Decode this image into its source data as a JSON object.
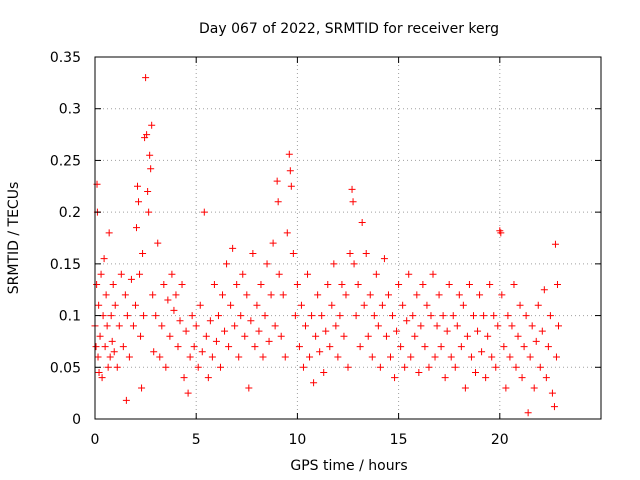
{
  "chart_data": {
    "type": "scatter",
    "title": "Day 067 of 2022, SRMTID for receiver kerg",
    "xlabel": "GPS time / hours",
    "ylabel": "SRMTID / TECUs",
    "xlim": [
      0,
      25
    ],
    "ylim": [
      0,
      0.35
    ],
    "x_ticks": [
      0,
      5,
      10,
      15,
      20
    ],
    "x_tick_labels": [
      "0",
      "5",
      "10",
      "15",
      "20"
    ],
    "y_ticks": [
      0,
      0.05,
      0.1,
      0.15,
      0.2,
      0.25,
      0.3,
      0.35
    ],
    "y_tick_labels": [
      "0",
      "0.05",
      "0.1",
      "0.15",
      "0.2",
      "0.25",
      "0.3",
      "0.35"
    ],
    "grid": true,
    "marker": "+",
    "color": "#ff0000",
    "series": [
      {
        "name": "SRMTID",
        "points": [
          [
            0.0,
            0.09
          ],
          [
            0.05,
            0.07
          ],
          [
            0.08,
            0.13
          ],
          [
            0.1,
            0.227
          ],
          [
            0.12,
            0.2
          ],
          [
            0.15,
            0.06
          ],
          [
            0.18,
            0.11
          ],
          [
            0.2,
            0.045
          ],
          [
            0.25,
            0.08
          ],
          [
            0.3,
            0.14
          ],
          [
            0.35,
            0.04
          ],
          [
            0.4,
            0.1
          ],
          [
            0.45,
            0.155
          ],
          [
            0.5,
            0.07
          ],
          [
            0.55,
            0.12
          ],
          [
            0.6,
            0.09
          ],
          [
            0.65,
            0.05
          ],
          [
            0.7,
            0.18
          ],
          [
            0.75,
            0.06
          ],
          [
            0.8,
            0.1
          ],
          [
            0.85,
            0.075
          ],
          [
            0.9,
            0.13
          ],
          [
            0.95,
            0.065
          ],
          [
            1.0,
            0.11
          ],
          [
            1.1,
            0.05
          ],
          [
            1.2,
            0.09
          ],
          [
            1.3,
            0.14
          ],
          [
            1.4,
            0.07
          ],
          [
            1.5,
            0.12
          ],
          [
            1.55,
            0.018
          ],
          [
            1.6,
            0.1
          ],
          [
            1.7,
            0.06
          ],
          [
            1.8,
            0.135
          ],
          [
            1.9,
            0.09
          ],
          [
            2.0,
            0.11
          ],
          [
            2.05,
            0.185
          ],
          [
            2.1,
            0.225
          ],
          [
            2.15,
            0.21
          ],
          [
            2.2,
            0.14
          ],
          [
            2.25,
            0.08
          ],
          [
            2.3,
            0.03
          ],
          [
            2.35,
            0.16
          ],
          [
            2.4,
            0.1
          ],
          [
            2.45,
            0.272
          ],
          [
            2.5,
            0.33
          ],
          [
            2.55,
            0.275
          ],
          [
            2.6,
            0.22
          ],
          [
            2.65,
            0.2
          ],
          [
            2.7,
            0.255
          ],
          [
            2.75,
            0.242
          ],
          [
            2.8,
            0.284
          ],
          [
            2.85,
            0.12
          ],
          [
            2.9,
            0.065
          ],
          [
            3.0,
            0.1
          ],
          [
            3.1,
            0.17
          ],
          [
            3.2,
            0.06
          ],
          [
            3.3,
            0.09
          ],
          [
            3.4,
            0.13
          ],
          [
            3.5,
            0.05
          ],
          [
            3.6,
            0.115
          ],
          [
            3.7,
            0.08
          ],
          [
            3.8,
            0.14
          ],
          [
            3.9,
            0.105
          ],
          [
            4.0,
            0.12
          ],
          [
            4.1,
            0.07
          ],
          [
            4.2,
            0.095
          ],
          [
            4.3,
            0.13
          ],
          [
            4.4,
            0.04
          ],
          [
            4.5,
            0.085
          ],
          [
            4.6,
            0.025
          ],
          [
            4.7,
            0.06
          ],
          [
            4.8,
            0.1
          ],
          [
            4.9,
            0.07
          ],
          [
            5.0,
            0.09
          ],
          [
            5.1,
            0.05
          ],
          [
            5.2,
            0.11
          ],
          [
            5.3,
            0.065
          ],
          [
            5.4,
            0.2
          ],
          [
            5.5,
            0.08
          ],
          [
            5.6,
            0.04
          ],
          [
            5.7,
            0.095
          ],
          [
            5.8,
            0.06
          ],
          [
            5.9,
            0.13
          ],
          [
            6.0,
            0.075
          ],
          [
            6.1,
            0.1
          ],
          [
            6.2,
            0.05
          ],
          [
            6.3,
            0.12
          ],
          [
            6.4,
            0.085
          ],
          [
            6.5,
            0.15
          ],
          [
            6.6,
            0.07
          ],
          [
            6.7,
            0.11
          ],
          [
            6.8,
            0.165
          ],
          [
            6.9,
            0.09
          ],
          [
            7.0,
            0.13
          ],
          [
            7.1,
            0.06
          ],
          [
            7.2,
            0.1
          ],
          [
            7.3,
            0.14
          ],
          [
            7.4,
            0.08
          ],
          [
            7.5,
            0.12
          ],
          [
            7.6,
            0.03
          ],
          [
            7.7,
            0.095
          ],
          [
            7.8,
            0.16
          ],
          [
            7.9,
            0.07
          ],
          [
            8.0,
            0.11
          ],
          [
            8.1,
            0.085
          ],
          [
            8.2,
            0.13
          ],
          [
            8.3,
            0.06
          ],
          [
            8.4,
            0.1
          ],
          [
            8.5,
            0.15
          ],
          [
            8.6,
            0.075
          ],
          [
            8.7,
            0.12
          ],
          [
            8.8,
            0.17
          ],
          [
            8.9,
            0.09
          ],
          [
            9.0,
            0.23
          ],
          [
            9.05,
            0.21
          ],
          [
            9.1,
            0.14
          ],
          [
            9.2,
            0.08
          ],
          [
            9.3,
            0.12
          ],
          [
            9.4,
            0.06
          ],
          [
            9.5,
            0.18
          ],
          [
            9.6,
            0.256
          ],
          [
            9.65,
            0.24
          ],
          [
            9.7,
            0.225
          ],
          [
            9.8,
            0.16
          ],
          [
            9.9,
            0.1
          ],
          [
            10.0,
            0.13
          ],
          [
            10.1,
            0.07
          ],
          [
            10.2,
            0.11
          ],
          [
            10.3,
            0.05
          ],
          [
            10.4,
            0.09
          ],
          [
            10.5,
            0.14
          ],
          [
            10.6,
            0.06
          ],
          [
            10.7,
            0.1
          ],
          [
            10.8,
            0.035
          ],
          [
            10.9,
            0.08
          ],
          [
            11.0,
            0.12
          ],
          [
            11.1,
            0.065
          ],
          [
            11.2,
            0.1
          ],
          [
            11.3,
            0.045
          ],
          [
            11.4,
            0.085
          ],
          [
            11.5,
            0.13
          ],
          [
            11.6,
            0.07
          ],
          [
            11.7,
            0.11
          ],
          [
            11.8,
            0.15
          ],
          [
            11.9,
            0.09
          ],
          [
            12.0,
            0.06
          ],
          [
            12.1,
            0.1
          ],
          [
            12.2,
            0.13
          ],
          [
            12.3,
            0.08
          ],
          [
            12.4,
            0.12
          ],
          [
            12.5,
            0.05
          ],
          [
            12.6,
            0.16
          ],
          [
            12.7,
            0.222
          ],
          [
            12.75,
            0.21
          ],
          [
            12.8,
            0.15
          ],
          [
            12.9,
            0.1
          ],
          [
            13.0,
            0.13
          ],
          [
            13.1,
            0.07
          ],
          [
            13.2,
            0.19
          ],
          [
            13.3,
            0.11
          ],
          [
            13.4,
            0.16
          ],
          [
            13.5,
            0.08
          ],
          [
            13.6,
            0.12
          ],
          [
            13.7,
            0.06
          ],
          [
            13.8,
            0.1
          ],
          [
            13.9,
            0.14
          ],
          [
            14.0,
            0.09
          ],
          [
            14.1,
            0.05
          ],
          [
            14.2,
            0.11
          ],
          [
            14.3,
            0.155
          ],
          [
            14.4,
            0.08
          ],
          [
            14.5,
            0.12
          ],
          [
            14.6,
            0.06
          ],
          [
            14.7,
            0.1
          ],
          [
            14.8,
            0.04
          ],
          [
            14.9,
            0.085
          ],
          [
            15.0,
            0.13
          ],
          [
            15.1,
            0.07
          ],
          [
            15.2,
            0.11
          ],
          [
            15.3,
            0.05
          ],
          [
            15.4,
            0.095
          ],
          [
            15.5,
            0.14
          ],
          [
            15.6,
            0.06
          ],
          [
            15.7,
            0.1
          ],
          [
            15.8,
            0.08
          ],
          [
            15.9,
            0.12
          ],
          [
            16.0,
            0.045
          ],
          [
            16.1,
            0.09
          ],
          [
            16.2,
            0.13
          ],
          [
            16.3,
            0.07
          ],
          [
            16.4,
            0.11
          ],
          [
            16.5,
            0.05
          ],
          [
            16.6,
            0.1
          ],
          [
            16.7,
            0.14
          ],
          [
            16.8,
            0.06
          ],
          [
            16.9,
            0.09
          ],
          [
            17.0,
            0.12
          ],
          [
            17.1,
            0.07
          ],
          [
            17.2,
            0.1
          ],
          [
            17.3,
            0.04
          ],
          [
            17.4,
            0.085
          ],
          [
            17.5,
            0.13
          ],
          [
            17.6,
            0.06
          ],
          [
            17.7,
            0.1
          ],
          [
            17.8,
            0.05
          ],
          [
            17.9,
            0.09
          ],
          [
            18.0,
            0.12
          ],
          [
            18.1,
            0.07
          ],
          [
            18.2,
            0.11
          ],
          [
            18.3,
            0.03
          ],
          [
            18.4,
            0.08
          ],
          [
            18.5,
            0.13
          ],
          [
            18.6,
            0.06
          ],
          [
            18.7,
            0.1
          ],
          [
            18.8,
            0.045
          ],
          [
            18.9,
            0.085
          ],
          [
            19.0,
            0.12
          ],
          [
            19.1,
            0.065
          ],
          [
            19.2,
            0.1
          ],
          [
            19.3,
            0.04
          ],
          [
            19.4,
            0.08
          ],
          [
            19.5,
            0.13
          ],
          [
            19.6,
            0.06
          ],
          [
            19.7,
            0.1
          ],
          [
            19.8,
            0.05
          ],
          [
            19.9,
            0.09
          ],
          [
            20.0,
            0.182
          ],
          [
            20.05,
            0.18
          ],
          [
            20.1,
            0.12
          ],
          [
            20.2,
            0.07
          ],
          [
            20.3,
            0.03
          ],
          [
            20.4,
            0.1
          ],
          [
            20.5,
            0.06
          ],
          [
            20.6,
            0.09
          ],
          [
            20.7,
            0.13
          ],
          [
            20.8,
            0.05
          ],
          [
            20.9,
            0.08
          ],
          [
            21.0,
            0.11
          ],
          [
            21.1,
            0.04
          ],
          [
            21.2,
            0.07
          ],
          [
            21.3,
            0.1
          ],
          [
            21.4,
            0.006
          ],
          [
            21.5,
            0.06
          ],
          [
            21.6,
            0.09
          ],
          [
            21.7,
            0.03
          ],
          [
            21.8,
            0.075
          ],
          [
            21.9,
            0.11
          ],
          [
            22.0,
            0.05
          ],
          [
            22.1,
            0.085
          ],
          [
            22.2,
            0.125
          ],
          [
            22.3,
            0.04
          ],
          [
            22.4,
            0.07
          ],
          [
            22.5,
            0.1
          ],
          [
            22.6,
            0.025
          ],
          [
            22.7,
            0.012
          ],
          [
            22.75,
            0.169
          ],
          [
            22.8,
            0.06
          ],
          [
            22.85,
            0.13
          ],
          [
            22.9,
            0.09
          ]
        ]
      }
    ]
  }
}
